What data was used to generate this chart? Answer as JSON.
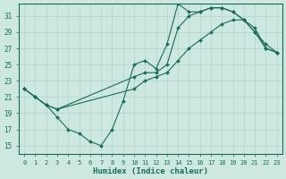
{
  "xlabel": "Humidex (Indice chaleur)",
  "bg_color": "#cce8e0",
  "grid_color": "#b0d4cc",
  "line_color": "#1a6b5a",
  "xlim": [
    -0.5,
    23.5
  ],
  "ylim": [
    14,
    32.5
  ],
  "xticks": [
    0,
    1,
    2,
    3,
    4,
    5,
    6,
    7,
    8,
    9,
    10,
    11,
    12,
    13,
    14,
    15,
    16,
    17,
    18,
    19,
    20,
    21,
    22,
    23
  ],
  "yticks": [
    15,
    17,
    19,
    21,
    23,
    25,
    27,
    29,
    31
  ],
  "line1_x": [
    0,
    1,
    2,
    3,
    4,
    5,
    6,
    7,
    8,
    9,
    10,
    11,
    12,
    13,
    14,
    15,
    16,
    17,
    18,
    19,
    20,
    21,
    22,
    23
  ],
  "line1_y": [
    22.0,
    21.0,
    20.0,
    18.5,
    17.0,
    16.5,
    15.5,
    15.0,
    17.0,
    20.5,
    25.0,
    25.5,
    24.5,
    27.5,
    32.5,
    31.5,
    31.5,
    32.0,
    32.0,
    31.5,
    30.5,
    29.0,
    27.0,
    26.5
  ],
  "line2_x": [
    0,
    1,
    2,
    3,
    10,
    11,
    12,
    13,
    14,
    15,
    16,
    17,
    18,
    19,
    20,
    21,
    22,
    23
  ],
  "line2_y": [
    22.0,
    21.0,
    20.0,
    19.5,
    23.5,
    24.0,
    24.0,
    25.0,
    29.5,
    31.0,
    31.5,
    32.0,
    32.0,
    31.5,
    30.5,
    29.5,
    27.0,
    26.5
  ],
  "line3_x": [
    0,
    1,
    2,
    3,
    10,
    11,
    12,
    13,
    14,
    15,
    16,
    17,
    18,
    19,
    20,
    21,
    22,
    23
  ],
  "line3_y": [
    22.0,
    21.0,
    20.0,
    19.5,
    22.0,
    23.0,
    23.5,
    24.0,
    25.5,
    27.0,
    28.0,
    29.0,
    30.0,
    30.5,
    30.5,
    29.0,
    27.5,
    26.5
  ]
}
